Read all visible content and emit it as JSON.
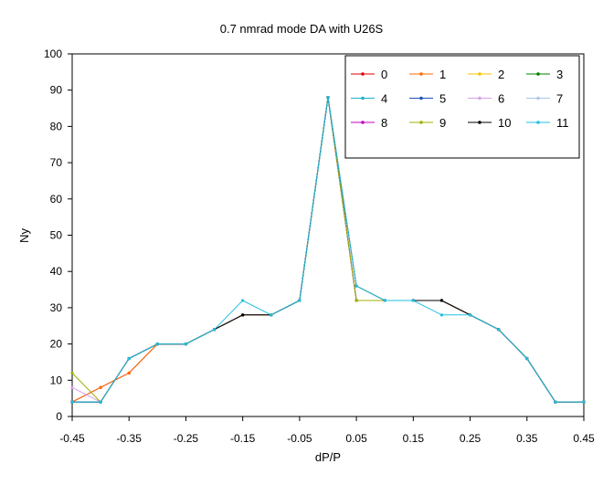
{
  "chart_data": {
    "type": "line",
    "title": "0.7 nmrad mode DA with U26S",
    "xlabel": "dP/P",
    "ylabel": "Ny",
    "xlim": [
      -0.45,
      0.45
    ],
    "ylim": [
      0,
      100
    ],
    "x_ticks": [
      "-0.45",
      "-0.35",
      "-0.25",
      "-0.15",
      "-0.05",
      "0.05",
      "0.15",
      "0.25",
      "0.35",
      "0.45"
    ],
    "y_ticks": [
      "0",
      "10",
      "20",
      "30",
      "40",
      "50",
      "60",
      "70",
      "80",
      "90",
      "100"
    ],
    "grid": false,
    "legend_position": "top-right",
    "legend_columns": 4,
    "series": [
      {
        "name": "0",
        "color": "#e00000",
        "points": [
          [
            -0.45,
            4
          ],
          [
            -0.4,
            8
          ],
          [
            -0.35,
            12
          ],
          [
            -0.3,
            20
          ],
          [
            -0.25,
            20
          ],
          [
            -0.2,
            24
          ],
          [
            -0.15,
            28
          ],
          [
            -0.1,
            28
          ],
          [
            -0.05,
            32
          ],
          [
            0,
            88
          ],
          [
            0.05,
            32
          ],
          [
            0.1,
            32
          ],
          [
            0.15,
            32
          ],
          [
            0.2,
            32
          ],
          [
            0.25,
            28
          ],
          [
            0.3,
            24
          ],
          [
            0.35,
            16
          ],
          [
            0.4,
            4
          ],
          [
            0.45,
            4
          ]
        ]
      },
      {
        "name": "1",
        "color": "#ff6a00",
        "points": [
          [
            -0.45,
            4
          ],
          [
            -0.4,
            8
          ],
          [
            -0.35,
            12
          ],
          [
            -0.3,
            20
          ],
          [
            -0.25,
            20
          ],
          [
            -0.2,
            24
          ],
          [
            -0.15,
            28
          ],
          [
            -0.1,
            28
          ],
          [
            -0.05,
            32
          ],
          [
            0,
            88
          ],
          [
            0.05,
            32
          ],
          [
            0.1,
            32
          ],
          [
            0.15,
            32
          ],
          [
            0.2,
            32
          ],
          [
            0.25,
            28
          ],
          [
            0.3,
            24
          ],
          [
            0.35,
            16
          ],
          [
            0.4,
            4
          ],
          [
            0.45,
            4
          ]
        ]
      },
      {
        "name": "2",
        "color": "#f5c400",
        "points": [
          [
            -0.45,
            4
          ],
          [
            -0.4,
            4
          ],
          [
            -0.35,
            16
          ],
          [
            -0.3,
            20
          ],
          [
            -0.25,
            20
          ],
          [
            -0.2,
            24
          ],
          [
            -0.15,
            28
          ],
          [
            -0.1,
            28
          ],
          [
            -0.05,
            32
          ],
          [
            0,
            88
          ],
          [
            0.05,
            32
          ],
          [
            0.1,
            32
          ],
          [
            0.15,
            32
          ],
          [
            0.2,
            32
          ],
          [
            0.25,
            28
          ],
          [
            0.3,
            24
          ],
          [
            0.35,
            16
          ],
          [
            0.4,
            4
          ],
          [
            0.45,
            4
          ]
        ]
      },
      {
        "name": "3",
        "color": "#008000",
        "points": [
          [
            -0.45,
            4
          ],
          [
            -0.4,
            4
          ],
          [
            -0.35,
            16
          ],
          [
            -0.3,
            20
          ],
          [
            -0.25,
            20
          ],
          [
            -0.2,
            24
          ],
          [
            -0.15,
            28
          ],
          [
            -0.1,
            28
          ],
          [
            -0.05,
            32
          ],
          [
            0,
            88
          ],
          [
            0.05,
            32
          ],
          [
            0.1,
            32
          ],
          [
            0.15,
            32
          ],
          [
            0.2,
            32
          ],
          [
            0.25,
            28
          ],
          [
            0.3,
            24
          ],
          [
            0.35,
            16
          ],
          [
            0.4,
            4
          ],
          [
            0.45,
            4
          ]
        ]
      },
      {
        "name": "4",
        "color": "#1fb0c8",
        "points": [
          [
            -0.45,
            4
          ],
          [
            -0.4,
            4
          ],
          [
            -0.35,
            16
          ],
          [
            -0.3,
            20
          ],
          [
            -0.25,
            20
          ],
          [
            -0.2,
            24
          ],
          [
            -0.15,
            28
          ],
          [
            -0.1,
            28
          ],
          [
            -0.05,
            32
          ],
          [
            0,
            88
          ],
          [
            0.05,
            32
          ],
          [
            0.1,
            32
          ],
          [
            0.15,
            32
          ],
          [
            0.2,
            32
          ],
          [
            0.25,
            28
          ],
          [
            0.3,
            24
          ],
          [
            0.35,
            16
          ],
          [
            0.4,
            4
          ],
          [
            0.45,
            4
          ]
        ]
      },
      {
        "name": "5",
        "color": "#2050c0",
        "points": [
          [
            -0.45,
            4
          ],
          [
            -0.4,
            4
          ],
          [
            -0.35,
            16
          ],
          [
            -0.3,
            20
          ],
          [
            -0.25,
            20
          ],
          [
            -0.2,
            24
          ],
          [
            -0.15,
            28
          ],
          [
            -0.1,
            28
          ],
          [
            -0.05,
            32
          ],
          [
            0,
            88
          ],
          [
            0.05,
            32
          ],
          [
            0.1,
            32
          ],
          [
            0.15,
            32
          ],
          [
            0.2,
            32
          ],
          [
            0.25,
            28
          ],
          [
            0.3,
            24
          ],
          [
            0.35,
            16
          ],
          [
            0.4,
            4
          ],
          [
            0.45,
            4
          ]
        ]
      },
      {
        "name": "6",
        "color": "#d8a0e8",
        "points": [
          [
            -0.45,
            8
          ],
          [
            -0.4,
            4
          ],
          [
            -0.35,
            16
          ],
          [
            -0.3,
            20
          ],
          [
            -0.25,
            20
          ],
          [
            -0.2,
            24
          ],
          [
            -0.15,
            28
          ],
          [
            -0.1,
            28
          ],
          [
            -0.05,
            32
          ],
          [
            0,
            88
          ],
          [
            0.05,
            32
          ],
          [
            0.1,
            32
          ],
          [
            0.15,
            32
          ],
          [
            0.2,
            32
          ],
          [
            0.25,
            28
          ],
          [
            0.3,
            24
          ],
          [
            0.35,
            16
          ],
          [
            0.4,
            4
          ],
          [
            0.45,
            4
          ]
        ]
      },
      {
        "name": "7",
        "color": "#a8c8e8",
        "points": [
          [
            -0.45,
            4
          ],
          [
            -0.4,
            4
          ],
          [
            -0.35,
            16
          ],
          [
            -0.3,
            20
          ],
          [
            -0.25,
            20
          ],
          [
            -0.2,
            24
          ],
          [
            -0.15,
            28
          ],
          [
            -0.1,
            28
          ],
          [
            -0.05,
            32
          ],
          [
            0,
            88
          ],
          [
            0.05,
            32
          ],
          [
            0.1,
            32
          ],
          [
            0.15,
            32
          ],
          [
            0.2,
            32
          ],
          [
            0.25,
            28
          ],
          [
            0.3,
            24
          ],
          [
            0.35,
            16
          ],
          [
            0.4,
            4
          ],
          [
            0.45,
            4
          ]
        ]
      },
      {
        "name": "8",
        "color": "#c000c0",
        "points": [
          [
            -0.45,
            4
          ],
          [
            -0.4,
            4
          ],
          [
            -0.35,
            16
          ],
          [
            -0.3,
            20
          ],
          [
            -0.25,
            20
          ],
          [
            -0.2,
            24
          ],
          [
            -0.15,
            28
          ],
          [
            -0.1,
            28
          ],
          [
            -0.05,
            32
          ],
          [
            0,
            88
          ],
          [
            0.05,
            32
          ],
          [
            0.1,
            32
          ],
          [
            0.15,
            32
          ],
          [
            0.2,
            32
          ],
          [
            0.25,
            28
          ],
          [
            0.3,
            24
          ],
          [
            0.35,
            16
          ],
          [
            0.4,
            4
          ],
          [
            0.45,
            4
          ]
        ]
      },
      {
        "name": "9",
        "color": "#a0b000",
        "points": [
          [
            -0.45,
            12
          ],
          [
            -0.4,
            4
          ],
          [
            -0.35,
            16
          ],
          [
            -0.3,
            20
          ],
          [
            -0.25,
            20
          ],
          [
            -0.2,
            24
          ],
          [
            -0.15,
            28
          ],
          [
            -0.1,
            28
          ],
          [
            -0.05,
            32
          ],
          [
            0,
            88
          ],
          [
            0.05,
            32
          ],
          [
            0.1,
            32
          ],
          [
            0.15,
            32
          ],
          [
            0.2,
            32
          ],
          [
            0.25,
            28
          ],
          [
            0.3,
            24
          ],
          [
            0.35,
            16
          ],
          [
            0.4,
            4
          ],
          [
            0.45,
            4
          ]
        ]
      },
      {
        "name": "10",
        "color": "#000000",
        "points": [
          [
            -0.45,
            4
          ],
          [
            -0.4,
            4
          ],
          [
            -0.35,
            16
          ],
          [
            -0.3,
            20
          ],
          [
            -0.25,
            20
          ],
          [
            -0.2,
            24
          ],
          [
            -0.15,
            28
          ],
          [
            -0.1,
            28
          ],
          [
            -0.05,
            32
          ],
          [
            0,
            88
          ],
          [
            0.05,
            36
          ],
          [
            0.1,
            32
          ],
          [
            0.15,
            32
          ],
          [
            0.2,
            32
          ],
          [
            0.25,
            28
          ],
          [
            0.3,
            24
          ],
          [
            0.35,
            16
          ],
          [
            0.4,
            4
          ],
          [
            0.45,
            4
          ]
        ]
      },
      {
        "name": "11",
        "color": "#22c0e0",
        "points": [
          [
            -0.45,
            4
          ],
          [
            -0.4,
            4
          ],
          [
            -0.35,
            16
          ],
          [
            -0.3,
            20
          ],
          [
            -0.25,
            20
          ],
          [
            -0.2,
            24
          ],
          [
            -0.15,
            32
          ],
          [
            -0.1,
            28
          ],
          [
            -0.05,
            32
          ],
          [
            0,
            88
          ],
          [
            0.05,
            36
          ],
          [
            0.1,
            32
          ],
          [
            0.15,
            32
          ],
          [
            0.2,
            28
          ],
          [
            0.25,
            28
          ],
          [
            0.3,
            24
          ],
          [
            0.35,
            16
          ],
          [
            0.4,
            4
          ],
          [
            0.45,
            4
          ]
        ]
      }
    ]
  }
}
